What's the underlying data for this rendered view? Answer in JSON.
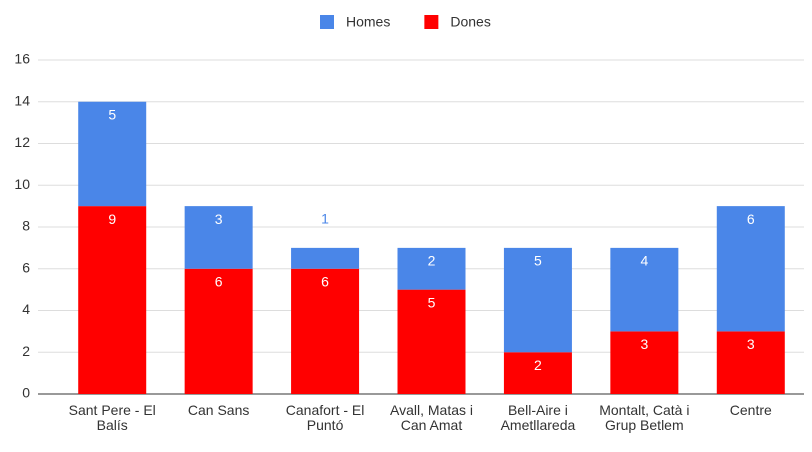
{
  "chart_data": {
    "type": "stacked_bar",
    "categories": [
      "Sant Pere - El Balís",
      "Can Sans",
      "Canafort - El Puntó",
      "Avall, Matas i Can Amat",
      "Bell-Aire i Ametllareda",
      "Montalt, Catà i Grup Betlem",
      "Centre"
    ],
    "series": [
      {
        "name": "Dones",
        "color": "#ff0000",
        "values": [
          9,
          6,
          6,
          5,
          2,
          3,
          3
        ]
      },
      {
        "name": "Homes",
        "color": "#4a86e8",
        "values": [
          5,
          3,
          1,
          2,
          5,
          4,
          6
        ]
      }
    ],
    "legend_order": [
      "Homes",
      "Dones"
    ],
    "ylim": [
      0,
      16
    ],
    "yticks": [
      0,
      2,
      4,
      6,
      8,
      10,
      12,
      14,
      16
    ],
    "grid": true,
    "legend": "top"
  }
}
